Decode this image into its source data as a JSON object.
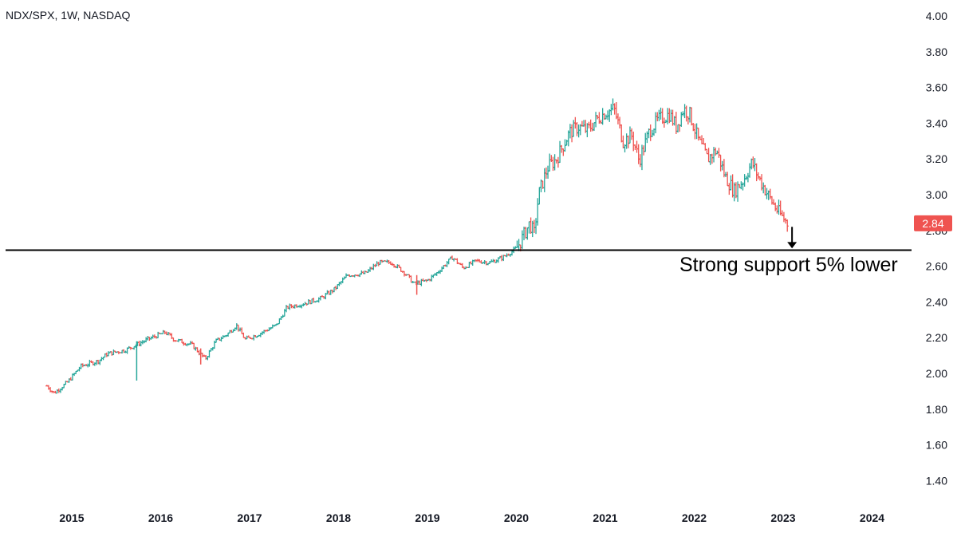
{
  "chart_data": {
    "type": "bar",
    "style": "ohlc-weekly",
    "title": "NDX/SPX, 1W, NASDAQ",
    "y_ticks": [
      "4.00",
      "3.80",
      "3.60",
      "3.40",
      "3.20",
      "3.00",
      "2.80",
      "2.60",
      "2.40",
      "2.20",
      "2.00",
      "1.80",
      "1.60",
      "1.40"
    ],
    "ylim": [
      1.3,
      4.05
    ],
    "x_ticks": [
      "2015",
      "2016",
      "2017",
      "2018",
      "2019",
      "2020",
      "2021",
      "2022",
      "2023",
      "2024"
    ],
    "xlim": [
      2014.72,
      2024.9
    ],
    "last_price": "2.84",
    "support_level": 2.69,
    "annotation": "Strong support 5% lower",
    "colors": {
      "up": "#26a69a",
      "down": "#ef5350",
      "price_tag": "#ef5350",
      "support": "#000000",
      "text": "#131722"
    },
    "anchors": [
      [
        2014.72,
        1.93
      ],
      [
        2014.8,
        1.89
      ],
      [
        2014.95,
        1.95
      ],
      [
        2015.1,
        2.04
      ],
      [
        2015.3,
        2.07
      ],
      [
        2015.4,
        2.11
      ],
      [
        2015.6,
        2.13
      ],
      [
        2015.85,
        2.19
      ],
      [
        2016.05,
        2.23
      ],
      [
        2016.15,
        2.19
      ],
      [
        2016.35,
        2.16
      ],
      [
        2016.5,
        2.08
      ],
      [
        2016.62,
        2.18
      ],
      [
        2016.75,
        2.22
      ],
      [
        2016.85,
        2.27
      ],
      [
        2016.95,
        2.19
      ],
      [
        2017.1,
        2.22
      ],
      [
        2017.3,
        2.27
      ],
      [
        2017.42,
        2.37
      ],
      [
        2017.6,
        2.39
      ],
      [
        2017.8,
        2.42
      ],
      [
        2017.95,
        2.47
      ],
      [
        2018.1,
        2.55
      ],
      [
        2018.3,
        2.56
      ],
      [
        2018.45,
        2.62
      ],
      [
        2018.6,
        2.62
      ],
      [
        2018.75,
        2.56
      ],
      [
        2018.85,
        2.5
      ],
      [
        2019.0,
        2.52
      ],
      [
        2019.1,
        2.56
      ],
      [
        2019.28,
        2.65
      ],
      [
        2019.4,
        2.59
      ],
      [
        2019.55,
        2.63
      ],
      [
        2019.7,
        2.62
      ],
      [
        2019.85,
        2.65
      ],
      [
        2020.0,
        2.7
      ],
      [
        2020.05,
        2.74
      ],
      [
        2020.15,
        2.84
      ],
      [
        2020.2,
        2.78
      ],
      [
        2020.25,
        3.0
      ],
      [
        2020.35,
        3.15
      ],
      [
        2020.45,
        3.2
      ],
      [
        2020.6,
        3.35
      ],
      [
        2020.7,
        3.38
      ],
      [
        2020.8,
        3.36
      ],
      [
        2020.9,
        3.42
      ],
      [
        2021.0,
        3.46
      ],
      [
        2021.1,
        3.48
      ],
      [
        2021.2,
        3.3
      ],
      [
        2021.3,
        3.33
      ],
      [
        2021.38,
        3.19
      ],
      [
        2021.5,
        3.36
      ],
      [
        2021.6,
        3.42
      ],
      [
        2021.72,
        3.45
      ],
      [
        2021.8,
        3.38
      ],
      [
        2021.88,
        3.48
      ],
      [
        2021.95,
        3.45
      ],
      [
        2022.05,
        3.3
      ],
      [
        2022.15,
        3.2
      ],
      [
        2022.25,
        3.25
      ],
      [
        2022.35,
        3.1
      ],
      [
        2022.45,
        3.02
      ],
      [
        2022.55,
        3.08
      ],
      [
        2022.65,
        3.18
      ],
      [
        2022.72,
        3.1
      ],
      [
        2022.85,
        2.98
      ],
      [
        2022.95,
        2.9
      ],
      [
        2023.05,
        2.84
      ]
    ]
  }
}
